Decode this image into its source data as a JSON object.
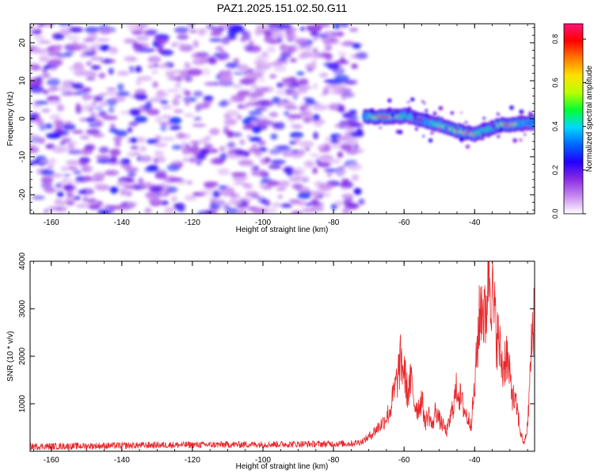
{
  "page_title": "PAZ1.2025.151.02.50.G11",
  "chart_data": [
    {
      "type": "heatmap",
      "title": "PAZ1.2025.151.02.50.G11",
      "xlabel": "Height of straight line (km)",
      "ylabel": "Frequency (Hz)",
      "xlim": [
        -166,
        -23
      ],
      "ylim": [
        -25,
        25
      ],
      "xticks": [
        -160,
        -140,
        -120,
        -100,
        -80,
        -60,
        -40
      ],
      "yticks": [
        -20,
        -10,
        0,
        10,
        20
      ],
      "grid": false,
      "colormap": "rainbow (white, violet, blue, cyan, green, yellow, orange, red)",
      "noise_region": {
        "x_range": [
          -166,
          -72
        ],
        "f_range": [
          -25,
          25
        ],
        "amplitude_range": [
          0.0,
          0.25
        ]
      },
      "no_data_region": {
        "x_range": [
          -72,
          -23
        ]
      },
      "signal_track": {
        "x": [
          -71,
          -66,
          -62,
          -60,
          -58,
          -54,
          -50,
          -46,
          -43,
          -40,
          -37,
          -34,
          -30,
          -27,
          -24,
          -23
        ],
        "frequency": [
          0.5,
          0.5,
          0.5,
          0.8,
          0.5,
          -0.5,
          -1.5,
          -2.8,
          -3.5,
          -4.0,
          -3.0,
          -1.8,
          -1.5,
          -1.3,
          -1.3,
          -1.0
        ],
        "peak_amplitude": [
          0.35,
          0.85,
          0.7,
          0.45,
          0.45,
          0.35,
          0.5,
          0.6,
          0.75,
          0.65,
          0.45,
          0.5,
          0.82,
          0.4,
          0.35,
          0.35
        ]
      },
      "colorbar": {
        "label": "Normalized spectral amplitude",
        "range": [
          0.0,
          0.87
        ],
        "ticks": [
          "0.0",
          "0.2",
          "0.4",
          "0.6",
          "0.8"
        ],
        "colors": [
          "#ffffff",
          "#c78bf0",
          "#8a2be2",
          "#2200ff",
          "#0066ff",
          "#00d8ff",
          "#00ff33",
          "#b8ff00",
          "#ffe100",
          "#ff7a00",
          "#ff0000",
          "#ff1477"
        ]
      }
    },
    {
      "type": "line",
      "xlabel": "Height of straight line (km)",
      "ylabel": "SNR (10 * v/v)",
      "xlim": [
        -166,
        -23
      ],
      "ylim": [
        0,
        4000
      ],
      "xticks": [
        -160,
        -140,
        -120,
        -100,
        -80,
        -60,
        -40
      ],
      "yticks": [
        1000,
        2000,
        3000,
        4000
      ],
      "grid": false,
      "color": "#e8262a",
      "series": [
        {
          "x": [
            -166,
            -150,
            -130,
            -110,
            -90,
            -75,
            -72,
            -70,
            -68,
            -66,
            -64,
            -62,
            -61,
            -60,
            -59,
            -58,
            -57,
            -56,
            -55,
            -54,
            -53,
            -52,
            -51,
            -50,
            -49,
            -48,
            -47,
            -46,
            -45,
            -44,
            -43,
            -42,
            -41,
            -40,
            -39,
            -38,
            -37,
            -36,
            -35,
            -34,
            -33,
            -32,
            -31,
            -30,
            -29,
            -28,
            -27,
            -26,
            -25,
            -24,
            -23
          ],
          "y": [
            100,
            110,
            130,
            140,
            150,
            160,
            200,
            300,
            450,
            600,
            850,
            1500,
            1900,
            1700,
            1200,
            1500,
            1000,
            900,
            1100,
            600,
            800,
            500,
            900,
            650,
            550,
            400,
            650,
            1000,
            1350,
            1100,
            900,
            700,
            600,
            1300,
            2500,
            3200,
            2700,
            4000,
            3300,
            2600,
            2200,
            1700,
            2100,
            1500,
            1100,
            900,
            400,
            150,
            500,
            2000,
            3200
          ]
        }
      ]
    }
  ]
}
